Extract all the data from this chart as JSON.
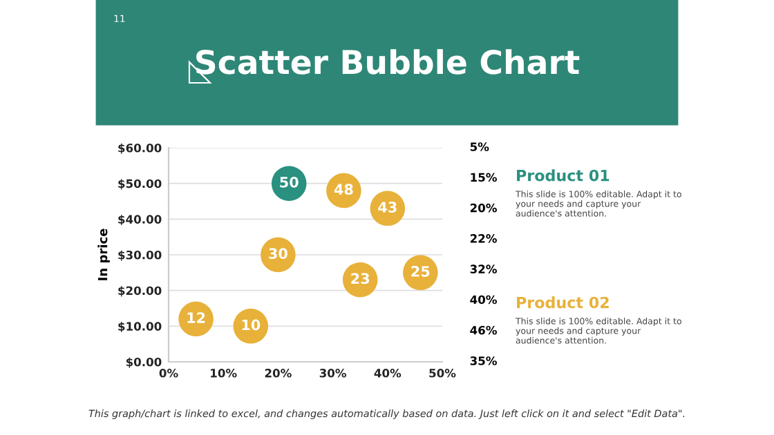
{
  "chart_data": {
    "type": "bubble",
    "title": "Scatter Bubble Chart",
    "ylabel": "In price",
    "xlim": [
      0,
      50
    ],
    "xticks": [
      {
        "value": 0,
        "label": "0%"
      },
      {
        "value": 10,
        "label": "10%"
      },
      {
        "value": 20,
        "label": "20%"
      },
      {
        "value": 30,
        "label": "30%"
      },
      {
        "value": 40,
        "label": "40%"
      },
      {
        "value": 50,
        "label": "50%"
      }
    ],
    "ylim": [
      0,
      60
    ],
    "yticks": [
      {
        "value": 0,
        "label": "$0.00"
      },
      {
        "value": 10,
        "label": "$10.00"
      },
      {
        "value": 20,
        "label": "$20.00"
      },
      {
        "value": 30,
        "label": "$30.00"
      },
      {
        "value": 40,
        "label": "$40.00"
      },
      {
        "value": 50,
        "label": "$50.00"
      },
      {
        "value": 60,
        "label": "$60.00"
      }
    ],
    "grid": "y",
    "data_labels": true,
    "marker": "circle",
    "series": [
      {
        "name": "Product 01",
        "color": "#2a9080",
        "x": [
          22
        ],
        "values": [
          50
        ],
        "sizes": [
          1
        ]
      },
      {
        "name": "Product 02",
        "color": "#e8b13a",
        "x": [
          32,
          40,
          20,
          35,
          46,
          5,
          15
        ],
        "values": [
          48,
          43,
          30,
          23,
          25,
          12,
          10
        ],
        "sizes": [
          1,
          1,
          1,
          1,
          1,
          1,
          1
        ]
      }
    ],
    "annotations": [
      "11",
      "This slide is 100% editable. Adapt it to your needs and capture your audience's attention.",
      "This slide is 100% editable. Adapt it to your needs and capture your audience's attention.",
      "5%",
      "15%",
      "20%",
      "22%",
      "32%",
      "40%",
      "46%",
      "35%",
      "This graph/chart is linked to excel, and changes automatically based on data. Just left click on it and select \"Edit Data\"."
    ]
  }
}
